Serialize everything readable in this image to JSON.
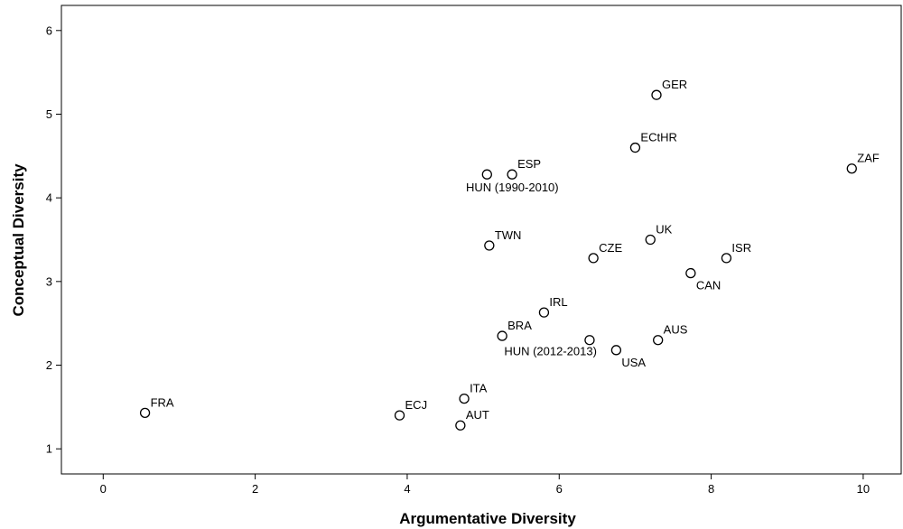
{
  "chart_data": {
    "type": "scatter",
    "xlabel": "Argumentative Diversity",
    "ylabel": "Conceptual Diversity",
    "xlim": [
      -0.55,
      10.5
    ],
    "ylim": [
      0.7,
      6.3
    ],
    "x_ticks": [
      "0",
      "2",
      "4",
      "6",
      "8",
      "10"
    ],
    "y_ticks": [
      "1",
      "2",
      "3",
      "4",
      "5",
      "6"
    ],
    "grid": false,
    "legend": "none",
    "points": [
      {
        "label": "FRA",
        "x": 0.55,
        "y": 1.43,
        "label_pos": "above-right"
      },
      {
        "label": "ECJ",
        "x": 3.9,
        "y": 1.4,
        "label_pos": "above-right"
      },
      {
        "label": "AUT",
        "x": 4.7,
        "y": 1.28,
        "label_pos": "above-right"
      },
      {
        "label": "ITA",
        "x": 4.75,
        "y": 1.6,
        "label_pos": "above-right"
      },
      {
        "label": "TWN",
        "x": 5.08,
        "y": 3.43,
        "label_pos": "above-right"
      },
      {
        "label": "HUN (1990-2010)",
        "x": 5.05,
        "y": 4.28,
        "label_pos": "below-center"
      },
      {
        "label": "ESP",
        "x": 5.38,
        "y": 4.28,
        "label_pos": "above-right"
      },
      {
        "label": "BRA",
        "x": 5.25,
        "y": 2.35,
        "label_pos": "above-right"
      },
      {
        "label": "IRL",
        "x": 5.8,
        "y": 2.63,
        "label_pos": "above-right"
      },
      {
        "label": "HUN (2012-2013)",
        "x": 6.4,
        "y": 2.3,
        "label_pos": "below-left"
      },
      {
        "label": "USA",
        "x": 6.75,
        "y": 2.18,
        "label_pos": "below-right"
      },
      {
        "label": "CZE",
        "x": 6.45,
        "y": 3.28,
        "label_pos": "above-right"
      },
      {
        "label": "ECtHR",
        "x": 7.0,
        "y": 4.6,
        "label_pos": "above-right"
      },
      {
        "label": "GER",
        "x": 7.28,
        "y": 5.23,
        "label_pos": "above-right"
      },
      {
        "label": "UK",
        "x": 7.2,
        "y": 3.5,
        "label_pos": "above-right"
      },
      {
        "label": "AUS",
        "x": 7.3,
        "y": 2.3,
        "label_pos": "above-right"
      },
      {
        "label": "CAN",
        "x": 7.73,
        "y": 3.1,
        "label_pos": "below-right"
      },
      {
        "label": "ISR",
        "x": 8.2,
        "y": 3.28,
        "label_pos": "above-right"
      },
      {
        "label": "ZAF",
        "x": 9.85,
        "y": 4.35,
        "label_pos": "above-right"
      }
    ]
  }
}
